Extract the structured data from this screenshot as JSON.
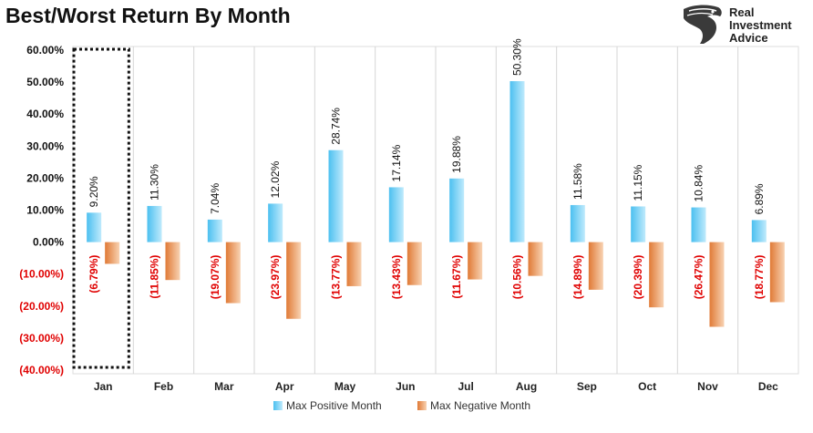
{
  "chart_data": {
    "type": "bar",
    "title": "Best/Worst Return By Month",
    "categories": [
      "Jan",
      "Feb",
      "Mar",
      "Apr",
      "May",
      "Jun",
      "Jul",
      "Aug",
      "Sep",
      "Oct",
      "Nov",
      "Dec"
    ],
    "series": [
      {
        "name": "Max Positive Month",
        "values": [
          9.2,
          11.3,
          7.04,
          12.02,
          28.74,
          17.14,
          19.88,
          50.3,
          11.58,
          11.15,
          10.84,
          6.89
        ],
        "labels": [
          "9.20%",
          "11.30%",
          "7.04%",
          "12.02%",
          "28.74%",
          "17.14%",
          "19.88%",
          "50.30%",
          "11.58%",
          "11.15%",
          "10.84%",
          "6.89%"
        ],
        "color": "#5ec8f2"
      },
      {
        "name": "Max Negative Month",
        "values": [
          -6.79,
          -11.85,
          -19.07,
          -23.97,
          -13.77,
          -13.43,
          -11.67,
          -10.56,
          -14.89,
          -20.39,
          -26.47,
          -18.77
        ],
        "labels": [
          "(6.79%)",
          "(11.85%)",
          "(19.07%)",
          "(23.97%)",
          "(13.77%)",
          "(13.43%)",
          "(11.67%)",
          "(10.56%)",
          "(14.89%)",
          "(20.39%)",
          "(26.47%)",
          "(18.77%)"
        ],
        "color": "#e8894a"
      }
    ],
    "y_ticks": [
      "60.00%",
      "50.00%",
      "40.00%",
      "30.00%",
      "20.00%",
      "10.00%",
      "0.00%",
      "(10.00%)",
      "(20.00%)",
      "(30.00%)",
      "(40.00%)"
    ],
    "y_tick_values": [
      60,
      50,
      40,
      30,
      20,
      10,
      0,
      -10,
      -20,
      -30,
      -40
    ],
    "ylim": [
      -40,
      60
    ],
    "xlabel": "",
    "ylabel": "",
    "grid": "vertical",
    "legend_position": "bottom",
    "highlight_category": "Jan"
  },
  "brand": {
    "line1": "Real",
    "line2": "Investment",
    "line3": "Advice",
    "logo_icon": "eagle-head-icon"
  },
  "colors": {
    "positive_tick": "#111111",
    "negative_tick": "#e00000",
    "grid": "#d6d6d6"
  }
}
